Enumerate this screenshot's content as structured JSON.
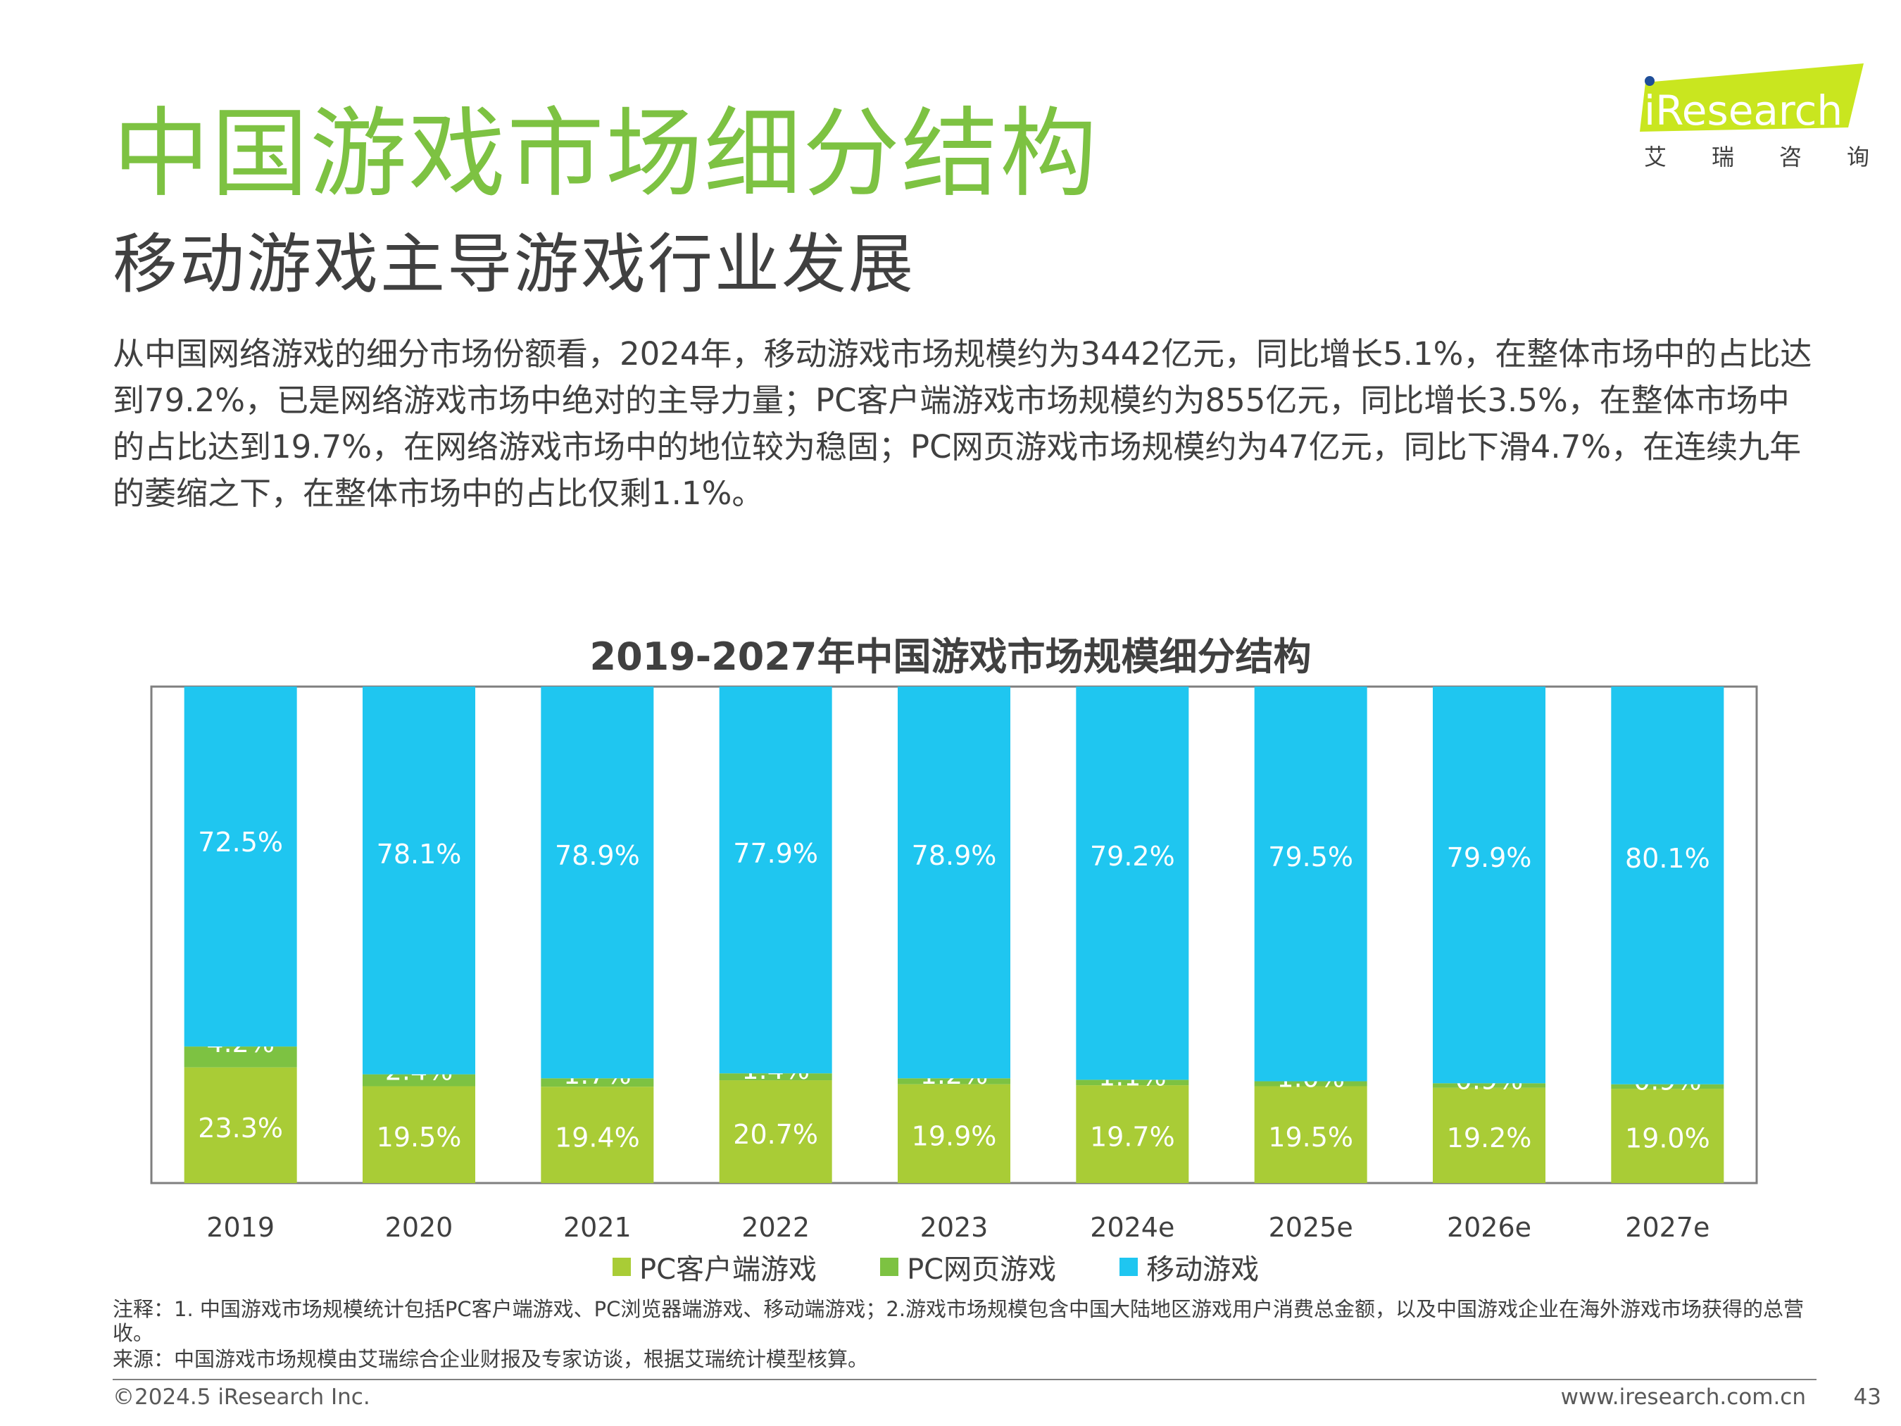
{
  "header": {
    "title": "中国游戏市场细分结构",
    "subtitle": "移动游戏主导游戏行业发展",
    "summary": "从中国网络游戏的细分市场份额看，2024年，移动游戏市场规模约为3442亿元，同比增长5.1%，在整体市场中的占比达到79.2%，已是网络游戏市场中绝对的主导力量；PC客户端游戏市场规模约为855亿元，同比增长3.5%，在整体市场中的占比达到19.7%，在网络游戏市场中的地位较为稳固；PC网页游戏市场规模约为47亿元，同比下滑4.7%，在连续九年的萎缩之下，在整体市场中的占比仅剩1.1%。"
  },
  "logo": {
    "brand": "iResearch",
    "chinese_chars": [
      "艾",
      "瑞",
      "咨",
      "询"
    ],
    "accent_color": "#c9e61f"
  },
  "chart_data": {
    "type": "bar",
    "stacked": true,
    "percent": true,
    "title": "2019-2027年中国游戏市场规模细分结构",
    "categories": [
      "2019",
      "2020",
      "2021",
      "2022",
      "2023",
      "2024e",
      "2025e",
      "2026e",
      "2027e"
    ],
    "series": [
      {
        "name": "PC客户端游戏",
        "color": "#a9cc36",
        "values": [
          23.3,
          19.5,
          19.4,
          20.7,
          19.9,
          19.7,
          19.5,
          19.2,
          19.0
        ],
        "labels": [
          "23.3%",
          "19.5%",
          "19.4%",
          "20.7%",
          "19.9%",
          "19.7%",
          "19.5%",
          "19.2%",
          "19.0%"
        ]
      },
      {
        "name": "PC网页游戏",
        "color": "#7dc242",
        "values": [
          4.2,
          2.4,
          1.7,
          1.4,
          1.2,
          1.1,
          1.0,
          0.9,
          0.9
        ],
        "labels": [
          "4.2%",
          "2.4%",
          "1.7%",
          "1.4%",
          "1.2%",
          "1.1%",
          "1.0%",
          "0.9%",
          "0.9%"
        ]
      },
      {
        "name": "移动游戏",
        "color": "#1fc6f0",
        "values": [
          72.5,
          78.1,
          78.9,
          77.9,
          78.9,
          79.2,
          79.5,
          79.9,
          80.1
        ],
        "labels": [
          "72.5%",
          "78.1%",
          "78.9%",
          "77.9%",
          "78.9%",
          "79.2%",
          "79.5%",
          "79.9%",
          "80.1%"
        ]
      }
    ],
    "ylim": [
      0,
      100
    ],
    "grid": false,
    "legend": "bottom"
  },
  "footer": {
    "note": "注释：1. 中国游戏市场规模统计包括PC客户端游戏、PC浏览器端游戏、移动端游戏；2.游戏市场规模包含中国大陆地区游戏用户消费总金额，以及中国游戏企业在海外游戏市场获得的总营收。",
    "source": "来源：中国游戏市场规模由艾瑞综合企业财报及专家访谈，根据艾瑞统计模型核算。",
    "copyright": "©2024.5 iResearch Inc.",
    "website": "www.iresearch.com.cn",
    "page_number": "43"
  }
}
